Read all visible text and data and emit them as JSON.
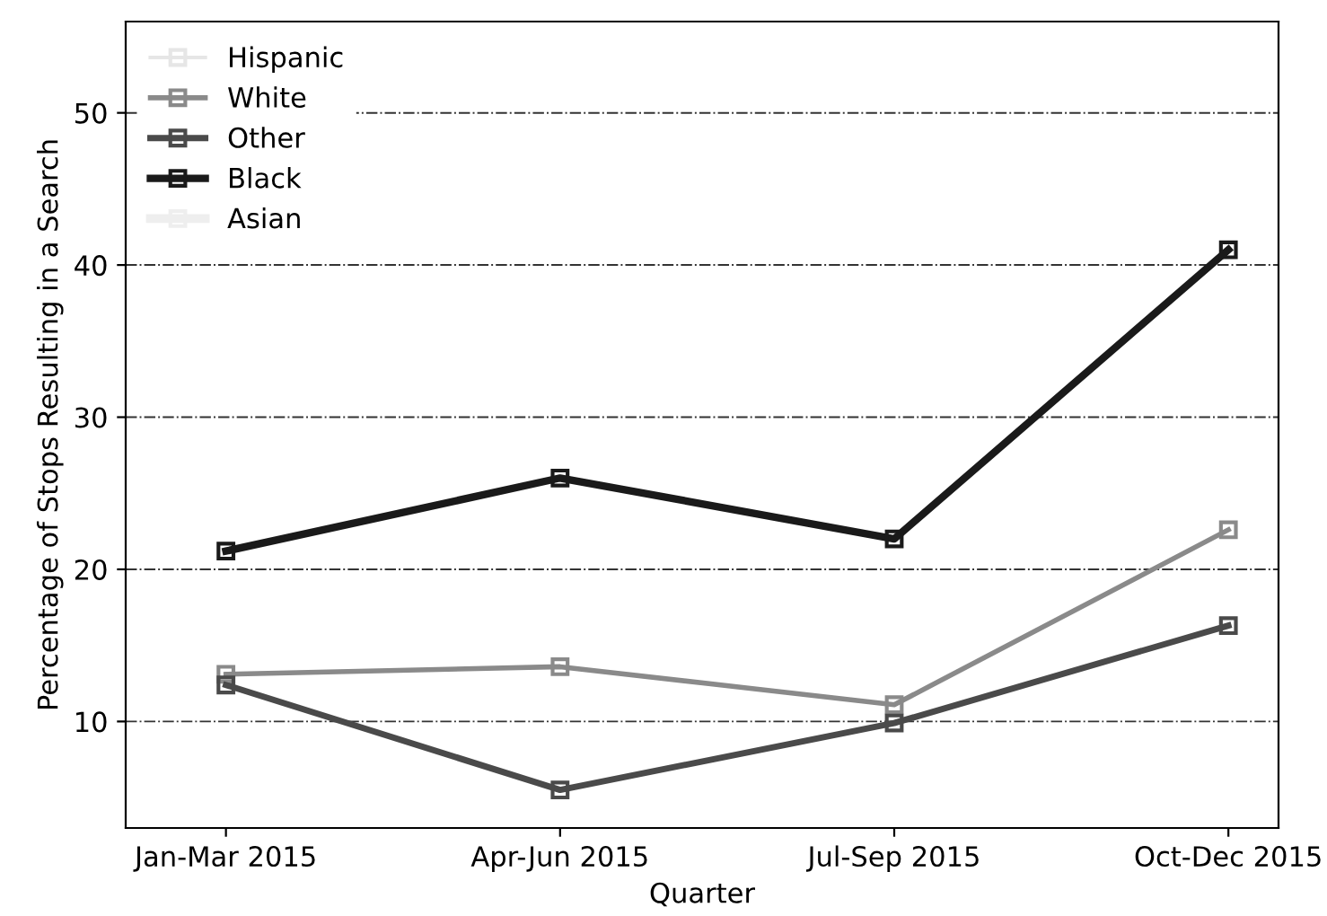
{
  "chart_data": {
    "type": "line",
    "xlabel": "Quarter",
    "ylabel": "Percentage of Stops Resulting in a Search",
    "categories": [
      "Jan-Mar 2015",
      "Apr-Jun 2015",
      "Jul-Sep 2015",
      "Oct-Dec 2015"
    ],
    "series": [
      {
        "name": "Hispanic",
        "color": "#e6e6e6",
        "values": [
          null,
          null,
          null,
          null
        ]
      },
      {
        "name": "White",
        "color": "#8a8a8a",
        "values": [
          13.1,
          13.6,
          11.1,
          22.6
        ]
      },
      {
        "name": "Other",
        "color": "#4a4a4a",
        "values": [
          12.4,
          5.5,
          9.9,
          16.3
        ]
      },
      {
        "name": "Black",
        "color": "#1a1a1a",
        "values": [
          21.2,
          26.0,
          22.0,
          41.0
        ]
      },
      {
        "name": "Asian",
        "color": "#eeeeee",
        "values": [
          null,
          null,
          null,
          null
        ]
      }
    ],
    "ylim": [
      3,
      56
    ],
    "yticks": [
      10,
      20,
      30,
      40,
      50
    ],
    "grid": "y",
    "legend": "top left",
    "marker": "square",
    "line_style": "solid"
  }
}
